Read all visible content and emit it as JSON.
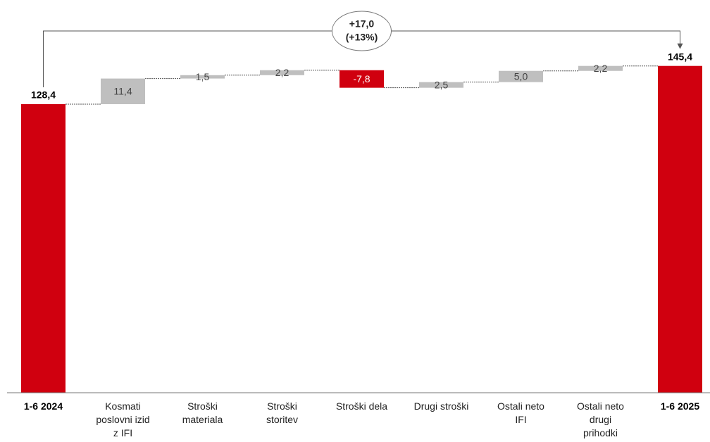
{
  "chart_data": {
    "type": "waterfall",
    "categories": [
      "1-6 2024",
      "Kosmati poslovni izid z IFI",
      "Stroški materiala",
      "Stroški storitev",
      "Stroški dela",
      "Drugi stroški",
      "Ostali neto IFI",
      "Ostali neto drugi prihodki",
      "1-6 2025"
    ],
    "kinds": [
      "total",
      "delta",
      "delta",
      "delta",
      "delta",
      "delta",
      "delta",
      "delta",
      "total"
    ],
    "values": [
      128.4,
      11.4,
      1.5,
      2.2,
      -7.8,
      2.5,
      5.0,
      2.2,
      145.4
    ],
    "value_labels": [
      "128,4",
      "11,4",
      "1,5",
      "2,2",
      "-7,8",
      "2,5",
      "5,0",
      "2,2",
      "145,4"
    ],
    "colors": {
      "total": "#d0000f",
      "increase": "#bfbfbf",
      "decrease": "#d0000f"
    },
    "ylim": [
      0,
      150
    ],
    "annotation": [
      "+17,0",
      "(+13%)"
    ]
  }
}
